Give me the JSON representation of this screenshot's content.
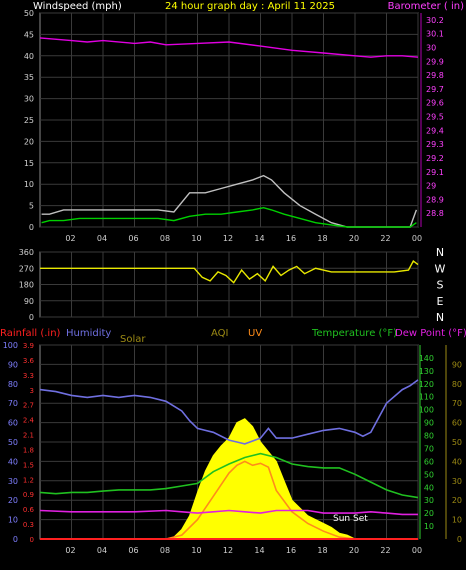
{
  "header": {
    "wind_label": "Windspeed (mph)",
    "title": "24 hour graph day : April 11 2025",
    "baro_label": "Barometer ( in)"
  },
  "x_ticks": [
    "02",
    "04",
    "06",
    "08",
    "10",
    "12",
    "14",
    "16",
    "18",
    "20",
    "22",
    "00"
  ],
  "colors": {
    "wind": "#ffffff",
    "gust": "#c0c0c0",
    "wind_avg": "#00d000",
    "baro": "#e000e0",
    "direction": "#e8e800",
    "rain": "#ff2020",
    "humidity": "#6f6fe0",
    "solar": "#ffff00",
    "aqi": "#9c8a14",
    "uv": "#ff8c1a",
    "temp": "#20c020",
    "dew": "#e020e0",
    "grid": "#3a3a3a"
  },
  "chart_data": [
    {
      "type": "line",
      "title": "24 hour graph day : April 11 2025",
      "series": [
        {
          "name": "Windspeed (mph)",
          "axis": "left",
          "ylim": [
            0,
            50
          ],
          "x": [
            0.1,
            0.6,
            1.5,
            2.5,
            3.5,
            4.5,
            5.5,
            6.5,
            7.5,
            8.5,
            9.5,
            10.5,
            11.5,
            12.5,
            13.5,
            14.2,
            14.7,
            15.5,
            16.5,
            17.5,
            18.5,
            19.5,
            20.5,
            21.5,
            22.5,
            23.5,
            23.9
          ],
          "values": [
            1,
            1.5,
            1.5,
            2,
            2,
            2,
            2,
            2,
            2,
            1.5,
            2.5,
            3,
            3,
            3.5,
            4,
            4.5,
            4,
            3,
            2,
            1,
            0.5,
            0,
            0,
            0,
            0,
            0,
            1
          ]
        },
        {
          "name": "Gust",
          "axis": "left",
          "ylim": [
            0,
            50
          ],
          "x": [
            0.1,
            0.6,
            1.5,
            2.5,
            3.5,
            4.5,
            5.5,
            6.5,
            7.5,
            8.5,
            9.5,
            10.5,
            11.5,
            12.5,
            13.5,
            14.2,
            14.7,
            15.5,
            16.5,
            17.5,
            18.5,
            19.5,
            20.5,
            21.5,
            22.5,
            23.5,
            23.9
          ],
          "values": [
            3,
            3,
            4,
            4,
            4,
            4,
            4,
            4,
            4,
            3.5,
            8,
            8,
            9,
            10,
            11,
            12,
            11,
            8,
            5,
            3,
            1,
            0,
            0,
            0,
            0,
            0,
            4
          ]
        },
        {
          "name": "Barometer ( in)",
          "axis": "right",
          "ylim": [
            28.7,
            30.25
          ],
          "x": [
            0,
            2,
            3,
            4,
            6,
            7,
            8,
            10,
            12,
            14,
            16,
            18,
            20,
            21,
            22,
            23,
            24
          ],
          "values": [
            30.07,
            30.05,
            30.04,
            30.05,
            30.03,
            30.04,
            30.02,
            30.03,
            30.04,
            30.01,
            29.98,
            29.96,
            29.94,
            29.93,
            29.94,
            29.94,
            29.93
          ]
        }
      ],
      "y_ticks_left": [
        0,
        5,
        10,
        15,
        20,
        25,
        30,
        35,
        40,
        45,
        50
      ],
      "y_ticks_right": [
        "28.8",
        "28.9",
        "29",
        "29.1",
        "29.2",
        "29.3",
        "29.4",
        "29.5",
        "29.6",
        "29.7",
        "29.8",
        "29.9",
        "30",
        "30.1",
        "30.2"
      ]
    },
    {
      "type": "scatter",
      "series": [
        {
          "name": "Wind direction",
          "ylim": [
            0,
            360
          ],
          "x": [
            0,
            2,
            4,
            6,
            8,
            9.8,
            10.3,
            10.8,
            11.3,
            11.8,
            12.3,
            12.8,
            13.3,
            13.8,
            14.3,
            14.8,
            15.3,
            15.8,
            16.3,
            16.8,
            17.5,
            18.5,
            19.5,
            20.5,
            21.5,
            22.5,
            23.4,
            23.7,
            24
          ],
          "values": [
            270,
            270,
            270,
            270,
            270,
            270,
            220,
            200,
            250,
            230,
            190,
            260,
            210,
            240,
            200,
            280,
            230,
            260,
            280,
            240,
            270,
            250,
            250,
            250,
            250,
            250,
            260,
            310,
            290
          ]
        }
      ],
      "y_ticks": [
        "360",
        "270",
        "180",
        "90",
        "0"
      ],
      "compass_labels": [
        "N",
        "W",
        "S",
        "E",
        "N"
      ]
    },
    {
      "type": "line",
      "legend": [
        "Rainfall (.in)",
        "Humidity",
        "Solar",
        "AQI",
        "UV",
        "Temperature (°F)",
        "Dew Point (°F)"
      ],
      "series": [
        {
          "name": "Humidity",
          "ylim": [
            0,
            100
          ],
          "x": [
            0,
            1,
            2,
            3,
            4,
            5,
            6,
            7,
            8,
            9,
            9.5,
            10,
            10.5,
            11,
            12,
            12.5,
            13,
            14,
            14.5,
            15,
            16,
            17,
            18,
            19,
            20,
            20.5,
            21,
            22,
            23,
            23.5,
            24
          ],
          "values": [
            77,
            76,
            74,
            73,
            74,
            73,
            74,
            73,
            71,
            66,
            61,
            57,
            56,
            55,
            51,
            50,
            49,
            52,
            57,
            52,
            52,
            54,
            56,
            57,
            55,
            53,
            55,
            70,
            77,
            79,
            82
          ]
        },
        {
          "name": "Temperature (°F)",
          "ylim": [
            0,
            150
          ],
          "x": [
            0,
            1,
            2,
            3,
            4,
            5,
            6,
            7,
            8,
            9,
            10,
            11,
            12,
            13,
            14,
            15,
            16,
            17,
            18,
            19,
            20,
            21,
            22,
            23,
            24
          ],
          "values": [
            36,
            35,
            36,
            36,
            37,
            38,
            38,
            38,
            39,
            41,
            43,
            52,
            58,
            63,
            66,
            63,
            58,
            56,
            55,
            55,
            50,
            44,
            38,
            34,
            32
          ]
        },
        {
          "name": "Dew Point (°F)",
          "ylim": [
            0,
            150
          ],
          "x": [
            0,
            2,
            4,
            6,
            8,
            9,
            10,
            11,
            12,
            13,
            14,
            15,
            16,
            17,
            18,
            19,
            20,
            21,
            22,
            23,
            24
          ],
          "values": [
            22,
            21,
            21,
            21,
            22,
            21,
            20,
            21,
            22,
            21,
            20,
            22,
            22,
            22,
            20,
            20,
            20,
            21,
            20,
            19,
            19
          ]
        },
        {
          "name": "Solar",
          "ylim": [
            0,
            100
          ],
          "x": [
            8.5,
            9,
            9.5,
            10,
            10.5,
            11,
            11.5,
            12,
            12.5,
            13,
            13.5,
            14,
            14.5,
            15,
            15.5,
            16,
            16.5,
            17,
            17.5,
            18,
            18.5,
            19,
            19.5,
            20
          ],
          "values": [
            1,
            5,
            12,
            24,
            35,
            43,
            48,
            52,
            60,
            62,
            58,
            50,
            45,
            40,
            30,
            20,
            16,
            12,
            10,
            8,
            6,
            3,
            2,
            0
          ]
        },
        {
          "name": "UV",
          "ylim": [
            0,
            100
          ],
          "x": [
            8,
            9,
            10,
            11,
            12,
            12.5,
            13,
            13.5,
            14,
            14.5,
            15,
            16,
            17,
            18,
            19,
            20
          ],
          "values": [
            0,
            2,
            10,
            22,
            34,
            38,
            40,
            38,
            39,
            37,
            25,
            14,
            8,
            4,
            1,
            0
          ]
        },
        {
          "name": "Rainfall (.in)",
          "ylim": [
            0,
            3.9
          ],
          "x": [
            0,
            24
          ],
          "values": [
            0,
            0
          ]
        }
      ],
      "y_ticks_left1": [
        "0",
        "10",
        "20",
        "30",
        "40",
        "50",
        "60",
        "70",
        "80",
        "90",
        "100"
      ],
      "y_ticks_left2": [
        "0",
        "0.3",
        "0.6",
        "0.9",
        "1.2",
        "1.5",
        "1.8",
        "2.1",
        "2.4",
        "2.7",
        "3",
        "3.3",
        "3.6",
        "3.9"
      ],
      "y_ticks_right1": [
        "10",
        "20",
        "30",
        "40",
        "50",
        "60",
        "70",
        "80",
        "90",
        "100",
        "110",
        "120",
        "130",
        "140"
      ],
      "y_ticks_right2": [
        "0",
        "10",
        "20",
        "30",
        "40",
        "50",
        "60",
        "70",
        "80",
        "90"
      ],
      "annotation": "Sun Set"
    }
  ]
}
